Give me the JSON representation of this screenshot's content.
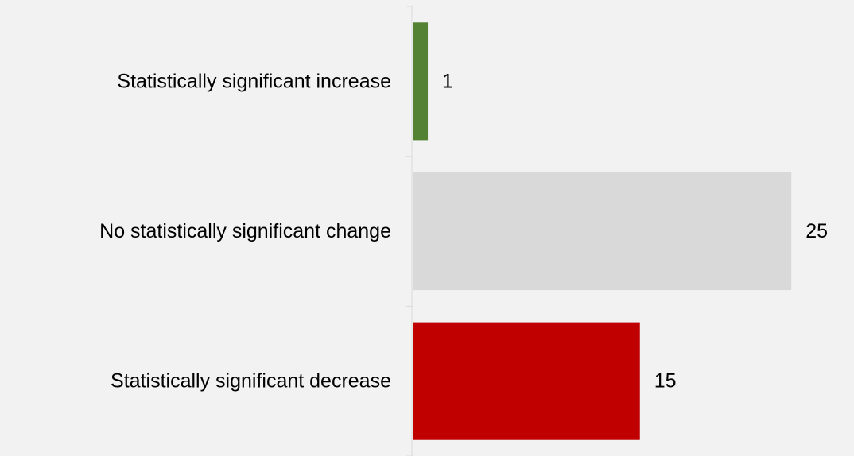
{
  "chart_data": {
    "type": "bar",
    "orientation": "horizontal",
    "categories": [
      "Statistically significant increase",
      "No statistically significant change",
      "Statistically significant decrease"
    ],
    "values": [
      1,
      25,
      15
    ],
    "colors": [
      "#548235",
      "#d9d9d9",
      "#c00000"
    ],
    "data_labels": [
      "1",
      "25",
      "15"
    ],
    "title": "",
    "xlabel": "",
    "ylabel": "",
    "xlim": [
      0,
      25
    ],
    "grid": false,
    "legend": "none",
    "background": "#f2f2f2"
  }
}
